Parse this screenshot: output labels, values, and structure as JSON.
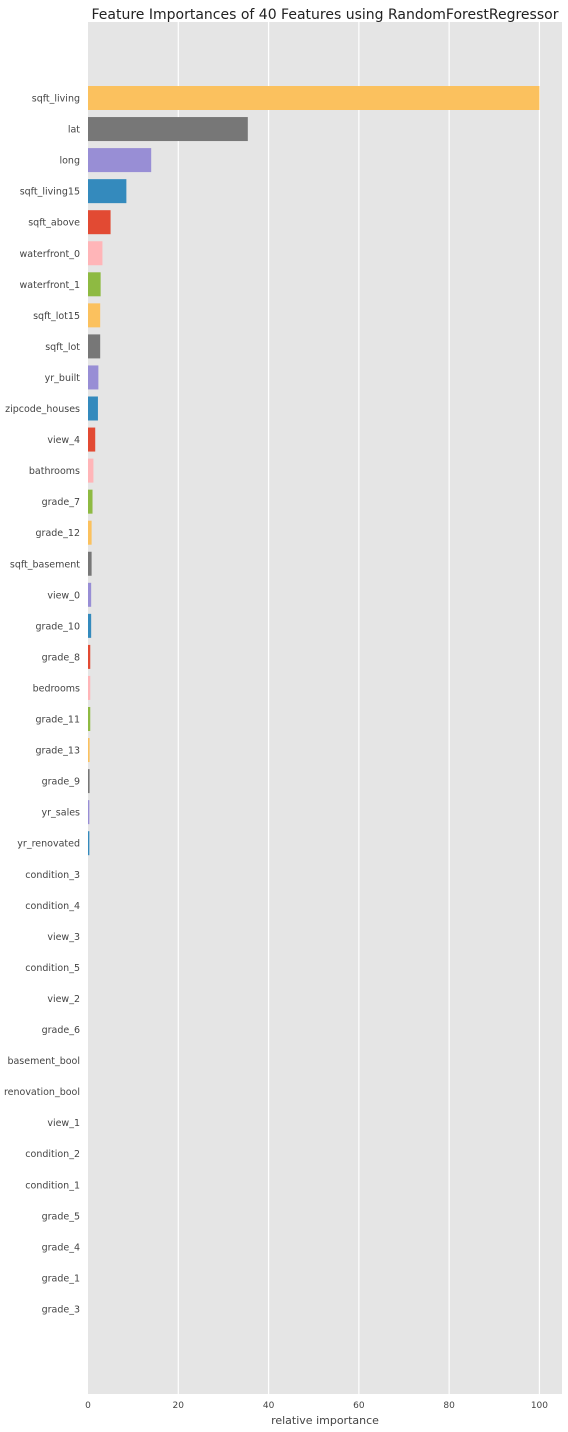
{
  "chart_data": {
    "type": "bar",
    "orientation": "horizontal",
    "title": "Feature Importances of 40 Features using RandomForestRegressor",
    "xlabel": "relative importance",
    "ylabel": "",
    "xlim": [
      0,
      105
    ],
    "xticks": [
      "0",
      "20",
      "40",
      "60",
      "80",
      "100"
    ],
    "grid": true,
    "colors": [
      "#FBC15E",
      "#777777",
      "#988ED5",
      "#348ABD",
      "#E24A33",
      "#FFB5B8",
      "#8EBA42"
    ],
    "categories": [
      "sqft_living",
      "lat",
      "long",
      "sqft_living15",
      "sqft_above",
      "waterfront_0",
      "waterfront_1",
      "sqft_lot15",
      "sqft_lot",
      "yr_built",
      "zipcode_houses",
      "view_4",
      "bathrooms",
      "grade_7",
      "grade_12",
      "sqft_basement",
      "view_0",
      "grade_10",
      "grade_8",
      "bedrooms",
      "grade_11",
      "grade_13",
      "grade_9",
      "yr_sales",
      "yr_renovated",
      "condition_3",
      "condition_4",
      "view_3",
      "condition_5",
      "view_2",
      "grade_6",
      "basement_bool",
      "renovation_bool",
      "view_1",
      "condition_2",
      "condition_1",
      "grade_5",
      "grade_4",
      "grade_1",
      "grade_3"
    ],
    "values": [
      100,
      35.4,
      14.0,
      8.5,
      5.0,
      3.2,
      2.8,
      2.7,
      2.7,
      2.3,
      2.2,
      1.6,
      1.2,
      1.0,
      0.8,
      0.8,
      0.7,
      0.7,
      0.5,
      0.5,
      0.5,
      0.35,
      0.35,
      0.3,
      0.3,
      0,
      0,
      0,
      0,
      0,
      0,
      0,
      0,
      0,
      0,
      0,
      0,
      0,
      0,
      0
    ]
  }
}
